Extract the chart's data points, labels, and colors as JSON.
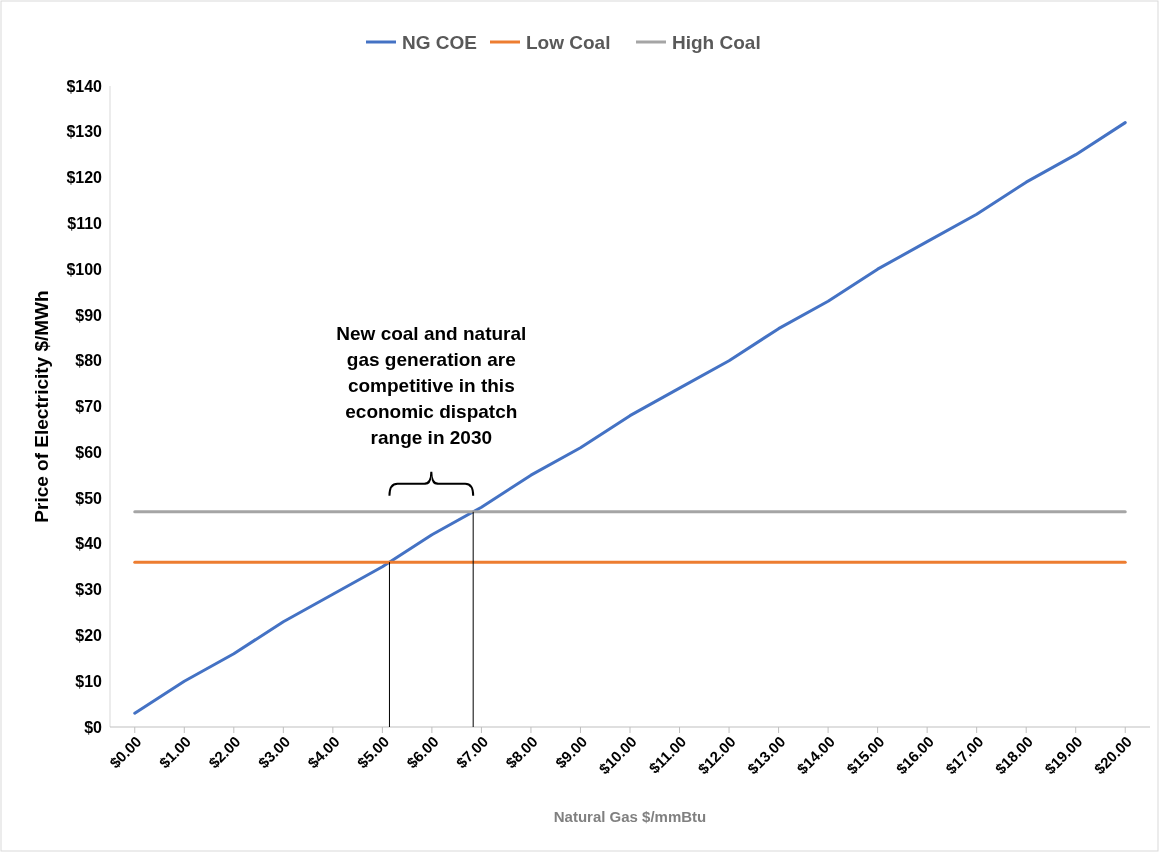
{
  "chart_data": {
    "type": "line",
    "xlabel": "Natural Gas $/mmBtu",
    "ylabel": "Price of Electricity $/MWh",
    "categories": [
      "$0.00",
      "$1.00",
      "$2.00",
      "$3.00",
      "$4.00",
      "$5.00",
      "$6.00",
      "$7.00",
      "$8.00",
      "$9.00",
      "$10.00",
      "$11.00",
      "$12.00",
      "$13.00",
      "$14.00",
      "$15.00",
      "$16.00",
      "$17.00",
      "$18.00",
      "$19.00",
      "$20.00"
    ],
    "series": [
      {
        "name": "NG COE",
        "color": "#4472c4",
        "values": [
          3,
          10,
          16,
          23,
          29,
          35,
          42,
          48,
          55,
          61,
          68,
          74,
          80,
          87,
          93,
          100,
          106,
          112,
          119,
          125,
          132
        ]
      },
      {
        "name": "Low Coal",
        "color": "#ed7d31",
        "values": [
          36,
          36,
          36,
          36,
          36,
          36,
          36,
          36,
          36,
          36,
          36,
          36,
          36,
          36,
          36,
          36,
          36,
          36,
          36,
          36,
          36
        ]
      },
      {
        "name": "High Coal",
        "color": "#a5a5a5",
        "values": [
          47,
          47,
          47,
          47,
          47,
          47,
          47,
          47,
          47,
          47,
          47,
          47,
          47,
          47,
          47,
          47,
          47,
          47,
          47,
          47,
          47
        ]
      }
    ],
    "ylim": [
      0,
      140
    ],
    "yticks": [
      {
        "value": 0,
        "label": "$0"
      },
      {
        "value": 10,
        "label": "$10"
      },
      {
        "value": 20,
        "label": "$20"
      },
      {
        "value": 30,
        "label": "$30"
      },
      {
        "value": 40,
        "label": "$40"
      },
      {
        "value": 50,
        "label": "$50"
      },
      {
        "value": 60,
        "label": "$60"
      },
      {
        "value": 70,
        "label": "$70"
      },
      {
        "value": 80,
        "label": "$80"
      },
      {
        "value": 90,
        "label": "$90"
      },
      {
        "value": 100,
        "label": "$100"
      },
      {
        "value": 110,
        "label": "$110"
      },
      {
        "value": 120,
        "label": "$120"
      },
      {
        "value": 130,
        "label": "$130"
      },
      {
        "value": 140,
        "label": "$140"
      }
    ],
    "legend": "top",
    "marker": "none",
    "line_style": "solid",
    "annotations": [
      "New coal and natural gas generation are competitive in this economic dispatch range in 2030"
    ]
  }
}
